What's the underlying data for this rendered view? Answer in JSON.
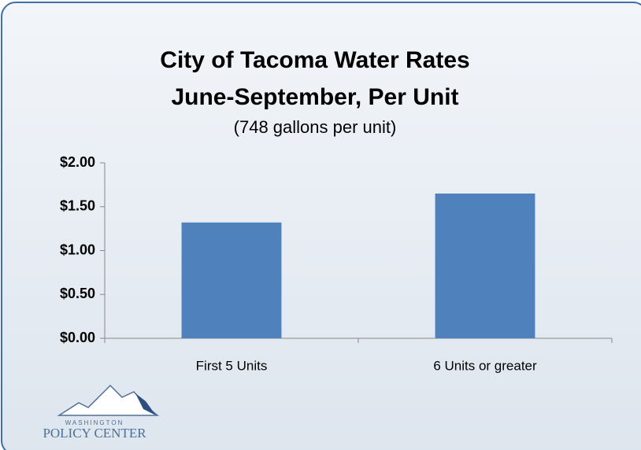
{
  "chart_data": {
    "type": "bar",
    "title": [
      "City of Tacoma Water Rates",
      "June-September, Per Unit"
    ],
    "subtitle": "(748 gallons per unit)",
    "categories": [
      "First 5 Units",
      "6 Units or greater"
    ],
    "values": [
      1.32,
      1.65
    ],
    "color": "#4f81bd",
    "ylim": [
      0,
      2
    ],
    "yticks": [
      {
        "value": 0,
        "label": "$0.00"
      },
      {
        "value": 0.5,
        "label": "$0.50"
      },
      {
        "value": 1,
        "label": "$1.00"
      },
      {
        "value": 1.5,
        "label": "$1.50"
      },
      {
        "value": 2,
        "label": "$2.00"
      }
    ],
    "grid": false
  },
  "logo": {
    "line1": "WASHINGTON",
    "line2": "POLICY CENTER"
  }
}
